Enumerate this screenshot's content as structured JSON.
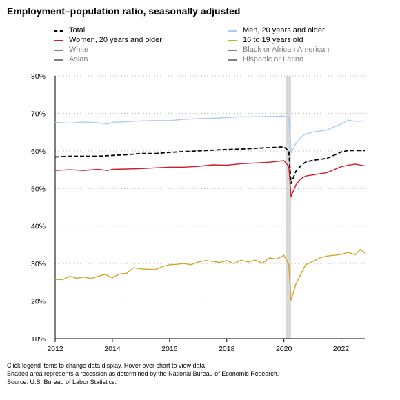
{
  "title": "Employment–population ratio, seasonally adjusted",
  "legend": [
    {
      "label": "Total",
      "color": "#000000",
      "dashed": true,
      "active": true
    },
    {
      "label": "Men, 20 years and older",
      "color": "#a8cdf0",
      "dashed": false,
      "active": true
    },
    {
      "label": "Women, 20 years and older",
      "color": "#cc1f2d",
      "dashed": false,
      "active": true
    },
    {
      "label": "16 to 19 years old",
      "color": "#d4a52a",
      "dashed": false,
      "active": true
    },
    {
      "label": "White",
      "color": "#808080",
      "dashed": false,
      "active": false
    },
    {
      "label": "Black or African American",
      "color": "#808080",
      "dashed": false,
      "active": false
    },
    {
      "label": "Asian",
      "color": "#808080",
      "dashed": false,
      "active": false
    },
    {
      "label": "Hispanic or Latino",
      "color": "#808080",
      "dashed": false,
      "active": false
    }
  ],
  "footnotes": {
    "line1": "Click legend items to change data display. Hover over chart to view data.",
    "line2": "Shaded area represents a recession as determined by the National Bureau of Economic Research.",
    "line3": "Source: U.S. Bureau of Labor Statistics."
  },
  "chart_data": {
    "type": "line",
    "title": "Employment–population ratio, seasonally adjusted",
    "xlabel": "",
    "ylabel": "",
    "xlim": [
      2012.0,
      2022.83
    ],
    "ylim": [
      10,
      80
    ],
    "x_ticks": [
      2012,
      2014,
      2016,
      2018,
      2020,
      2022
    ],
    "x_tick_labels": [
      "2012",
      "2014",
      "2016",
      "2018",
      "2020",
      "2022"
    ],
    "y_ticks": [
      10,
      20,
      30,
      40,
      50,
      60,
      70,
      80
    ],
    "y_tick_labels": [
      "10%",
      "20%",
      "30%",
      "40%",
      "50%",
      "60%",
      "70%",
      "80%"
    ],
    "grid": "horizontal dotted",
    "legend_position": "top",
    "recession": {
      "start": 2020.08,
      "end": 2020.25,
      "color": "#d9d9d9"
    },
    "series": [
      {
        "name": "Total",
        "color": "#000000",
        "dashed": true,
        "points": [
          [
            2012.0,
            58.4
          ],
          [
            2012.5,
            58.6
          ],
          [
            2013.0,
            58.6
          ],
          [
            2013.5,
            58.6
          ],
          [
            2014.0,
            58.8
          ],
          [
            2014.5,
            59.0
          ],
          [
            2015.0,
            59.3
          ],
          [
            2015.5,
            59.3
          ],
          [
            2016.0,
            59.6
          ],
          [
            2016.5,
            59.8
          ],
          [
            2017.0,
            60.0
          ],
          [
            2017.5,
            60.2
          ],
          [
            2018.0,
            60.4
          ],
          [
            2018.5,
            60.5
          ],
          [
            2019.0,
            60.7
          ],
          [
            2019.5,
            60.9
          ],
          [
            2020.0,
            61.1
          ],
          [
            2020.17,
            60.0
          ],
          [
            2020.25,
            51.3
          ],
          [
            2020.42,
            54.6
          ],
          [
            2020.58,
            56.0
          ],
          [
            2020.75,
            57.0
          ],
          [
            2021.0,
            57.5
          ],
          [
            2021.5,
            58.0
          ],
          [
            2022.0,
            59.7
          ],
          [
            2022.25,
            60.1
          ],
          [
            2022.5,
            60.1
          ],
          [
            2022.83,
            60.1
          ]
        ]
      },
      {
        "name": "Men, 20 years and older",
        "color": "#a8cdf0",
        "dashed": false,
        "points": [
          [
            2012.0,
            67.6
          ],
          [
            2012.5,
            67.4
          ],
          [
            2013.0,
            67.7
          ],
          [
            2013.5,
            67.5
          ],
          [
            2013.83,
            67.2
          ],
          [
            2014.0,
            67.6
          ],
          [
            2014.5,
            67.8
          ],
          [
            2015.0,
            68.0
          ],
          [
            2015.5,
            68.1
          ],
          [
            2016.0,
            68.1
          ],
          [
            2016.5,
            68.4
          ],
          [
            2017.0,
            68.6
          ],
          [
            2017.5,
            68.7
          ],
          [
            2018.0,
            68.9
          ],
          [
            2018.5,
            69.1
          ],
          [
            2019.0,
            69.1
          ],
          [
            2019.5,
            69.2
          ],
          [
            2020.0,
            69.3
          ],
          [
            2020.17,
            68.8
          ],
          [
            2020.25,
            59.5
          ],
          [
            2020.42,
            62.0
          ],
          [
            2020.58,
            63.5
          ],
          [
            2020.75,
            64.5
          ],
          [
            2021.0,
            65.0
          ],
          [
            2021.5,
            65.6
          ],
          [
            2022.0,
            67.2
          ],
          [
            2022.25,
            68.2
          ],
          [
            2022.5,
            67.9
          ],
          [
            2022.83,
            68.0
          ]
        ]
      },
      {
        "name": "Women, 20 years and older",
        "color": "#cc1f2d",
        "dashed": false,
        "points": [
          [
            2012.0,
            54.8
          ],
          [
            2012.5,
            55.0
          ],
          [
            2013.0,
            54.8
          ],
          [
            2013.5,
            55.1
          ],
          [
            2013.83,
            54.8
          ],
          [
            2014.0,
            55.1
          ],
          [
            2014.5,
            55.2
          ],
          [
            2015.0,
            55.3
          ],
          [
            2015.5,
            55.5
          ],
          [
            2016.0,
            55.7
          ],
          [
            2016.5,
            55.7
          ],
          [
            2017.0,
            55.9
          ],
          [
            2017.5,
            56.3
          ],
          [
            2018.0,
            56.2
          ],
          [
            2018.5,
            56.6
          ],
          [
            2019.0,
            56.8
          ],
          [
            2019.5,
            57.0
          ],
          [
            2020.0,
            57.4
          ],
          [
            2020.17,
            55.9
          ],
          [
            2020.25,
            47.8
          ],
          [
            2020.42,
            51.0
          ],
          [
            2020.58,
            52.5
          ],
          [
            2020.75,
            53.3
          ],
          [
            2021.0,
            53.6
          ],
          [
            2021.5,
            54.2
          ],
          [
            2022.0,
            55.8
          ],
          [
            2022.25,
            56.2
          ],
          [
            2022.5,
            56.5
          ],
          [
            2022.83,
            56.0
          ]
        ]
      },
      {
        "name": "16 to 19 years old",
        "color": "#d4a52a",
        "dashed": false,
        "points": [
          [
            2012.0,
            25.8
          ],
          [
            2012.25,
            25.7
          ],
          [
            2012.5,
            26.6
          ],
          [
            2012.75,
            26.1
          ],
          [
            2013.0,
            26.4
          ],
          [
            2013.25,
            26.0
          ],
          [
            2013.5,
            26.6
          ],
          [
            2013.75,
            27.1
          ],
          [
            2014.0,
            26.2
          ],
          [
            2014.25,
            27.2
          ],
          [
            2014.5,
            27.4
          ],
          [
            2014.75,
            28.9
          ],
          [
            2015.0,
            28.6
          ],
          [
            2015.25,
            28.5
          ],
          [
            2015.5,
            28.4
          ],
          [
            2015.75,
            29.2
          ],
          [
            2016.0,
            29.7
          ],
          [
            2016.25,
            29.8
          ],
          [
            2016.5,
            30.0
          ],
          [
            2016.75,
            29.7
          ],
          [
            2017.0,
            30.4
          ],
          [
            2017.25,
            30.8
          ],
          [
            2017.5,
            30.6
          ],
          [
            2017.75,
            30.3
          ],
          [
            2018.0,
            30.8
          ],
          [
            2018.25,
            30.0
          ],
          [
            2018.5,
            30.9
          ],
          [
            2018.75,
            30.4
          ],
          [
            2019.0,
            30.9
          ],
          [
            2019.25,
            30.1
          ],
          [
            2019.5,
            31.5
          ],
          [
            2019.75,
            31.2
          ],
          [
            2020.0,
            32.2
          ],
          [
            2020.17,
            29.8
          ],
          [
            2020.25,
            20.2
          ],
          [
            2020.42,
            24.6
          ],
          [
            2020.58,
            27.0
          ],
          [
            2020.75,
            29.6
          ],
          [
            2021.0,
            30.5
          ],
          [
            2021.25,
            31.5
          ],
          [
            2021.5,
            32.0
          ],
          [
            2021.75,
            32.2
          ],
          [
            2022.0,
            32.4
          ],
          [
            2022.25,
            33.0
          ],
          [
            2022.5,
            32.3
          ],
          [
            2022.67,
            33.8
          ],
          [
            2022.83,
            32.8
          ]
        ]
      }
    ]
  }
}
